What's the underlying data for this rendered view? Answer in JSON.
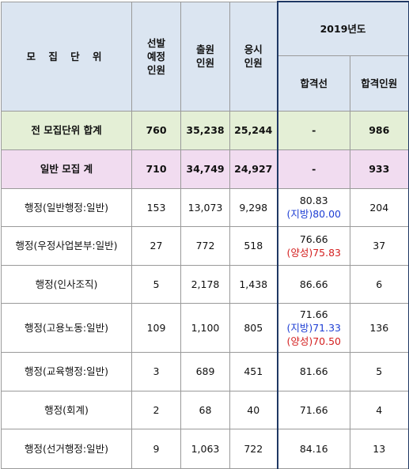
{
  "header": {
    "unit": "모 집 단 위",
    "selection": [
      "선발",
      "예정",
      "인원"
    ],
    "applied": [
      "출원",
      "인원"
    ],
    "taken": [
      "응시",
      "인원"
    ],
    "year": "2019년도",
    "cutline": "합격선",
    "passed": "합격인원"
  },
  "total": {
    "label": "전 모집단위 합계",
    "selection": "760",
    "applied": "35,238",
    "taken": "25,244",
    "cutline": "-",
    "passed": "986"
  },
  "general": {
    "label": "일반 모집 계",
    "selection": "710",
    "applied": "34,749",
    "taken": "24,927",
    "cutline": "-",
    "passed": "933"
  },
  "rows": [
    {
      "unit": "행정(일반행정:일반)",
      "selection": "153",
      "applied": "13,073",
      "taken": "9,298",
      "cut_main": "80.83",
      "cut_sub1": "(지방)80.00",
      "cut_sub2": "",
      "passed": "204"
    },
    {
      "unit": "행정(우정사업본부:일반)",
      "selection": "27",
      "applied": "772",
      "taken": "518",
      "cut_main": "76.66",
      "cut_sub1": "",
      "cut_sub2": "(양성)75.83",
      "passed": "37"
    },
    {
      "unit": "행정(인사조직)",
      "selection": "5",
      "applied": "2,178",
      "taken": "1,438",
      "cut_main": "86.66",
      "cut_sub1": "",
      "cut_sub2": "",
      "passed": "6"
    },
    {
      "unit": "행정(고용노동:일반)",
      "selection": "109",
      "applied": "1,100",
      "taken": "805",
      "cut_main": "71.66",
      "cut_sub1": "(지방)71.33",
      "cut_sub2": "(양성)70.50",
      "passed": "136"
    },
    {
      "unit": "행정(교육행정:일반)",
      "selection": "3",
      "applied": "689",
      "taken": "451",
      "cut_main": "81.66",
      "cut_sub1": "",
      "cut_sub2": "",
      "passed": "5"
    },
    {
      "unit": "행정(회계)",
      "selection": "2",
      "applied": "68",
      "taken": "40",
      "cut_main": "71.66",
      "cut_sub1": "",
      "cut_sub2": "",
      "passed": "4"
    },
    {
      "unit": "행정(선거행정:일반)",
      "selection": "9",
      "applied": "1,063",
      "taken": "722",
      "cut_main": "84.16",
      "cut_sub1": "",
      "cut_sub2": "",
      "passed": "13"
    }
  ],
  "colors": {
    "header_bg": "#dbe5f1",
    "total_bg": "#e4efd6",
    "general_bg": "#f1dcf0",
    "region_text": "#1f3fd4",
    "gender_text": "#d42020",
    "highlight_border": "#1f3864"
  }
}
